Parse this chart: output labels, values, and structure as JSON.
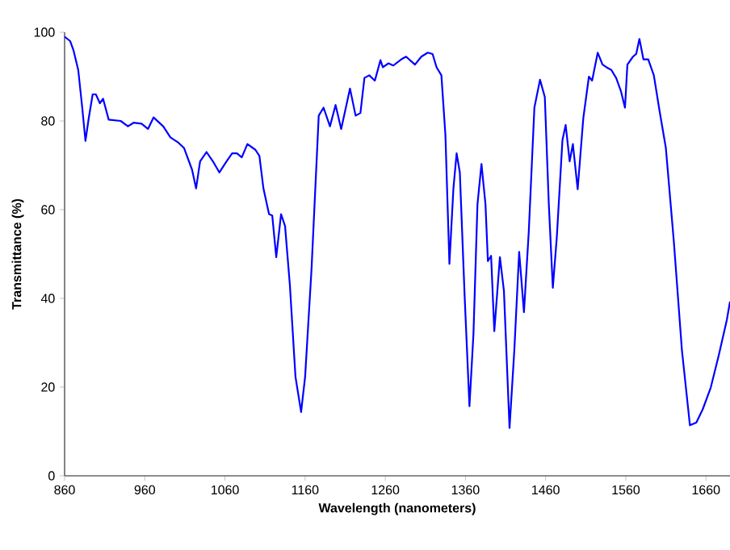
{
  "chart_data": {
    "type": "line",
    "xlabel": "Wavelength (nanometers)",
    "ylabel": "Transmittance (%)",
    "color": "#0000ff",
    "x": [
      860,
      867,
      871,
      877,
      882,
      886,
      890,
      895,
      899,
      904,
      908,
      915,
      930,
      939,
      946,
      956,
      964,
      971,
      983,
      992,
      1002,
      1009,
      1019,
      1024,
      1029,
      1037,
      1045,
      1053,
      1062,
      1069,
      1075,
      1081,
      1088,
      1098,
      1103,
      1108,
      1115,
      1119,
      1124,
      1130,
      1135,
      1141,
      1148,
      1155,
      1160,
      1168,
      1177,
      1183,
      1191,
      1198,
      1205,
      1216,
      1223,
      1229,
      1234,
      1240,
      1247,
      1254,
      1257,
      1264,
      1270,
      1280,
      1286,
      1297,
      1305,
      1313,
      1319,
      1324,
      1330,
      1335,
      1340,
      1345,
      1349,
      1353,
      1359,
      1365,
      1370,
      1375,
      1380,
      1385,
      1388,
      1392,
      1396,
      1403,
      1408,
      1415,
      1421,
      1427,
      1433,
      1439,
      1446,
      1453,
      1459,
      1464,
      1469,
      1474,
      1481,
      1485,
      1490,
      1494,
      1500,
      1507,
      1514,
      1518,
      1525,
      1531,
      1536,
      1542,
      1548,
      1554,
      1559,
      1562,
      1569,
      1573,
      1577,
      1582,
      1588,
      1595,
      1602,
      1610,
      1620,
      1630,
      1640,
      1648,
      1656,
      1666,
      1676,
      1686,
      1690
    ],
    "values": [
      99,
      98,
      96,
      91.5,
      83,
      75.5,
      80.5,
      86,
      86,
      84,
      85,
      80.3,
      80,
      78.8,
      79.6,
      79.4,
      78.2,
      80.8,
      78.8,
      76.3,
      75.1,
      73.9,
      69,
      64.8,
      70.9,
      73,
      70.9,
      68.4,
      70.9,
      72.7,
      72.7,
      71.8,
      74.8,
      73.5,
      72.1,
      64.8,
      59,
      58.7,
      49.3,
      59,
      56.3,
      43,
      22.3,
      14.4,
      22.3,
      46.6,
      81.2,
      83,
      78.8,
      83.6,
      78.2,
      87.3,
      81.2,
      81.8,
      89.7,
      90.3,
      89.1,
      93.7,
      92.1,
      93,
      92.5,
      93.9,
      94.5,
      92.7,
      94.5,
      95.4,
      95.1,
      92.1,
      90.3,
      76.9,
      47.8,
      64.8,
      72.7,
      68.4,
      40.5,
      15.7,
      32,
      61.2,
      70.3,
      61.2,
      48.4,
      49.6,
      32.6,
      49.3,
      41.7,
      10.8,
      28.4,
      50.5,
      36.9,
      55.1,
      83,
      89.3,
      85.4,
      61.2,
      42.4,
      53.9,
      75.7,
      79.1,
      70.9,
      74.8,
      64.6,
      80.6,
      90,
      89.1,
      95.4,
      92.7,
      92.1,
      91.5,
      89.7,
      86.7,
      83,
      92.7,
      94.5,
      95.1,
      98.5,
      93.9,
      93.9,
      90.3,
      82.4,
      73.9,
      52.7,
      28.4,
      11.4,
      12,
      15,
      19.9,
      27.2,
      35.1,
      39.3
    ],
    "xlim": [
      860,
      1690
    ],
    "ylim": [
      0,
      100
    ],
    "xticks": [
      860,
      960,
      1060,
      1160,
      1260,
      1360,
      1460,
      1560,
      1660
    ],
    "yticks": [
      0,
      20,
      40,
      60,
      80,
      100
    ]
  }
}
